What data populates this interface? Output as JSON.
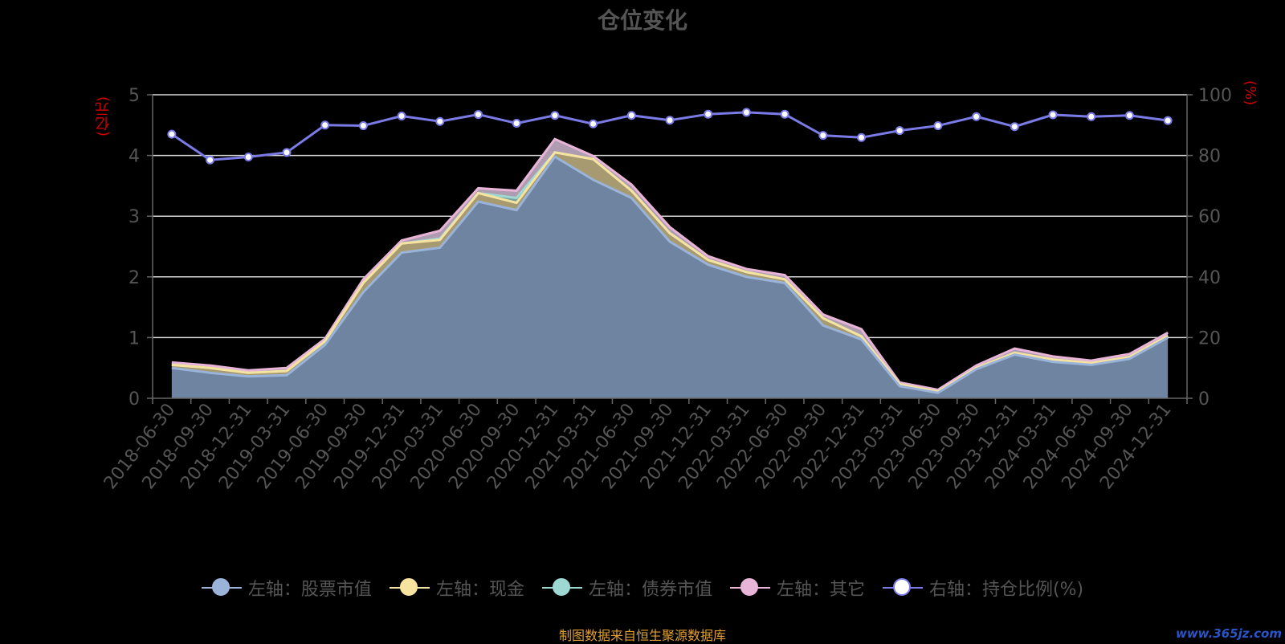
{
  "source_note": "制图数据来自恒生聚源数据库",
  "watermark": "www.365jz.com",
  "chart_data": {
    "type": "area",
    "title": "仓位变化",
    "left_axis_unit": "(亿元)",
    "right_axis_unit": "(%)",
    "left_ylim": [
      0,
      5
    ],
    "left_ticks": [
      0,
      1,
      2,
      3,
      4,
      5
    ],
    "right_ylim": [
      0,
      100
    ],
    "right_ticks": [
      0,
      20,
      40,
      60,
      80,
      100
    ],
    "grid": true,
    "legend_position": "bottom",
    "categories": [
      "2018-06-30",
      "2018-09-30",
      "2018-12-31",
      "2019-03-31",
      "2019-06-30",
      "2019-09-30",
      "2019-12-31",
      "2020-03-31",
      "2020-06-30",
      "2020-09-30",
      "2020-12-31",
      "2021-03-31",
      "2021-06-30",
      "2021-09-30",
      "2021-12-31",
      "2022-03-31",
      "2022-06-30",
      "2022-09-30",
      "2022-12-31",
      "2023-03-31",
      "2023-06-30",
      "2023-09-30",
      "2023-12-31",
      "2024-03-31",
      "2024-06-30",
      "2024-09-30",
      "2024-12-31"
    ],
    "stacked_series": [
      {
        "name": "左轴：股票市值",
        "axis": "left",
        "color": "#9ab3d9",
        "values": [
          0.5,
          0.42,
          0.36,
          0.38,
          0.88,
          1.75,
          2.4,
          2.48,
          3.24,
          3.1,
          3.98,
          3.6,
          3.3,
          2.58,
          2.2,
          2.0,
          1.9,
          1.2,
          0.97,
          0.2,
          0.09,
          0.48,
          0.72,
          0.6,
          0.55,
          0.65,
          1.0
        ]
      },
      {
        "name": "左轴：现金",
        "axis": "left",
        "color": "#f7e3a0",
        "values": [
          0.05,
          0.08,
          0.06,
          0.07,
          0.06,
          0.15,
          0.15,
          0.13,
          0.14,
          0.12,
          0.07,
          0.34,
          0.12,
          0.14,
          0.08,
          0.08,
          0.06,
          0.12,
          0.05,
          0.03,
          0.02,
          0.02,
          0.03,
          0.04,
          0.03,
          0.03,
          0.03
        ]
      },
      {
        "name": "左轴：债券市值",
        "axis": "left",
        "color": "#9ed8d2",
        "values": [
          0.0,
          0.0,
          0.0,
          0.0,
          0.0,
          0.0,
          0.0,
          0.02,
          0.0,
          0.08,
          0.0,
          0.0,
          0.0,
          0.0,
          0.0,
          0.0,
          0.0,
          0.0,
          0.0,
          0.0,
          0.0,
          0.0,
          0.0,
          0.0,
          0.0,
          0.0,
          0.0
        ]
      },
      {
        "name": "左轴：其它",
        "axis": "left",
        "color": "#e8b4d8",
        "values": [
          0.04,
          0.04,
          0.04,
          0.05,
          0.04,
          0.06,
          0.05,
          0.13,
          0.08,
          0.12,
          0.22,
          0.05,
          0.1,
          0.1,
          0.06,
          0.05,
          0.07,
          0.06,
          0.12,
          0.03,
          0.03,
          0.04,
          0.07,
          0.05,
          0.04,
          0.05,
          0.05
        ]
      }
    ],
    "line_series": {
      "name": "右轴：持仓比例(%)",
      "axis": "right",
      "color": "#7b7be8",
      "values": [
        87,
        78.5,
        79.5,
        81,
        90,
        89.8,
        93,
        91.2,
        93.5,
        90.6,
        93.2,
        90.4,
        93.2,
        91.6,
        93.6,
        94.2,
        93.6,
        86.6,
        85.9,
        88.2,
        89.8,
        92.8,
        89.5,
        93.4,
        92.8,
        93.2,
        91.5
      ]
    }
  }
}
